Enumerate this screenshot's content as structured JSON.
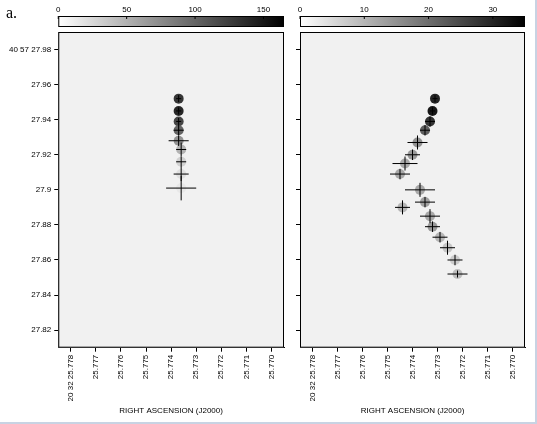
{
  "chart_data": [
    {
      "type": "scatter",
      "panel_label": "a.",
      "x_label": "RIGHT ASCENSION (J2000)",
      "xlim": [
        25.7785,
        25.7695
      ],
      "xticks": [
        {
          "value": 25.778,
          "label": "20 32 25.778"
        },
        25.777,
        25.776,
        25.775,
        25.774,
        25.773,
        25.772,
        25.771,
        {
          "value": 25.77,
          "label": "25.770"
        }
      ],
      "ylim": [
        27.81,
        27.99
      ],
      "yticks": [
        27.82,
        27.84,
        27.86,
        27.88,
        27.9,
        27.92,
        27.94,
        27.96,
        {
          "value": 27.98,
          "label": "40 57 27.98"
        }
      ],
      "grid": false,
      "tick_labels": true,
      "colorbar": {
        "range": [
          0,
          165
        ],
        "ticks": [
          0,
          50,
          100,
          150
        ]
      },
      "series": [
        {
          "color": "#000000",
          "marker": "cross",
          "x": [
            25.7737,
            25.7737,
            25.7737,
            25.7737,
            25.7737,
            25.7736,
            25.7736,
            25.7736,
            25.7736
          ],
          "values": [
            27.952,
            27.945,
            27.939,
            27.934,
            27.928,
            27.923,
            27.916,
            27.909,
            27.901
          ],
          "x_err": [
            0.0001,
            0.0001,
            0.0001,
            0.0002,
            0.0004,
            0.0002,
            0.0002,
            0.0003,
            0.0006
          ],
          "y_err": [
            0.002,
            0.002,
            0.002,
            0.003,
            0.003,
            0.004,
            0.003,
            0.004,
            0.007
          ],
          "peak": [
            130,
            140,
            120,
            100,
            70,
            50,
            30,
            20,
            15
          ]
        }
      ]
    },
    {
      "type": "scatter",
      "x_label": "RIGHT ASCENSION (J2000)",
      "xlim": [
        25.7785,
        25.7695
      ],
      "xticks": [
        {
          "value": 25.778,
          "label": "20 32 25.778"
        },
        25.777,
        25.776,
        25.775,
        25.774,
        25.773,
        25.772,
        25.771,
        {
          "value": 25.77,
          "label": "25.770"
        }
      ],
      "ylim": [
        27.81,
        27.99
      ],
      "yticks": [
        27.82,
        27.84,
        27.86,
        27.88,
        27.9,
        27.92,
        27.94,
        27.96,
        27.98
      ],
      "grid": false,
      "tick_labels": "x",
      "colorbar": {
        "range": [
          0,
          35
        ],
        "ticks": [
          0,
          10,
          20,
          30
        ]
      },
      "series": [
        {
          "color": "#000000",
          "marker": "cross",
          "x": [
            25.7731,
            25.7732,
            25.7733,
            25.7735,
            25.7738,
            25.774,
            25.7743,
            25.7745,
            25.7737,
            25.7735,
            25.7744,
            25.7733,
            25.7732,
            25.7729,
            25.7726,
            25.7723,
            25.7722
          ],
          "values": [
            27.952,
            27.945,
            27.939,
            27.934,
            27.927,
            27.92,
            27.915,
            27.909,
            27.9,
            27.893,
            27.89,
            27.885,
            27.879,
            27.873,
            27.867,
            27.86,
            27.852
          ],
          "x_err": [
            0.0001,
            0.0001,
            0.0002,
            0.0002,
            0.0004,
            0.0003,
            0.0005,
            0.0004,
            0.0006,
            0.0004,
            0.0003,
            0.0004,
            0.0003,
            0.0003,
            0.0003,
            0.0003,
            0.0004
          ],
          "y_err": [
            0.002,
            0.002,
            0.003,
            0.003,
            0.004,
            0.003,
            0.004,
            0.003,
            0.004,
            0.003,
            0.004,
            0.004,
            0.003,
            0.003,
            0.004,
            0.003,
            0.002
          ],
          "peak": [
            30,
            32,
            28,
            22,
            15,
            14,
            12,
            12,
            12,
            13,
            10,
            12,
            14,
            10,
            8,
            7,
            9
          ]
        }
      ]
    }
  ]
}
